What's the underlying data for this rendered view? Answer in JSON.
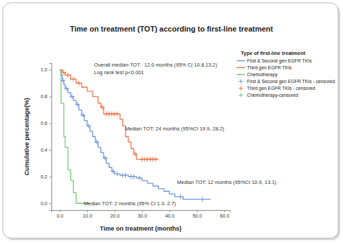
{
  "chart_data": {
    "type": "line",
    "title": "Time on treatment (TOT) according to first-line treatment",
    "x_label": "Time on treatment (months)",
    "y_label": "Cumulative percentage(%)",
    "legend_title": "Type of first-line treatment",
    "legend": "top-right",
    "annotations": [
      "Overall median TOT : 12.0 months (95% C| 10.8.13.2)",
      "Log rank test p<0.001",
      "Median TOT: 24 months (95%CI 19.9, 28.2)",
      "Median TOT: 12 months (95%CI 10.9, 13.1)",
      "Median TOT: 2 months (95% CI 1.3. 2.7)"
    ],
    "xlim": [
      -3,
      62
    ],
    "ylim": [
      -0.05,
      1.05
    ],
    "xticks": [
      {
        "value": 0,
        "label": "0.0"
      },
      {
        "value": 10,
        "label": "10.0"
      },
      {
        "value": 20,
        "label": "20.0"
      },
      {
        "value": 30,
        "label": "30.0"
      },
      {
        "value": 40,
        "label": "40.0"
      },
      {
        "value": 50,
        "label": "50.0"
      },
      {
        "value": 60,
        "label": "60.0"
      }
    ],
    "yticks": [
      {
        "value": 0,
        "label": "0.0"
      },
      0.2,
      0.4,
      0.6,
      0.8,
      {
        "value": 1,
        "label": "1.0"
      }
    ],
    "grid": false,
    "series": [
      {
        "name": "First & Second gen EGFR TKIs",
        "type": "step",
        "color": "#7196d8",
        "x": [
          0,
          0.5,
          1,
          1.5,
          2,
          3,
          4,
          5,
          6,
          7,
          8,
          9,
          10,
          11,
          12,
          13,
          14,
          15,
          16,
          17,
          18,
          19,
          20,
          22,
          25,
          28,
          30,
          32,
          34,
          36,
          38,
          40,
          42,
          45,
          55
        ],
        "values": [
          1.0,
          0.96,
          0.92,
          0.89,
          0.86,
          0.83,
          0.8,
          0.77,
          0.74,
          0.7,
          0.66,
          0.62,
          0.58,
          0.54,
          0.5,
          0.46,
          0.42,
          0.38,
          0.34,
          0.3,
          0.27,
          0.24,
          0.22,
          0.21,
          0.2,
          0.19,
          0.17,
          0.15,
          0.13,
          0.11,
          0.09,
          0.07,
          0.05,
          0.03,
          0.03
        ]
      },
      {
        "name": "Third gen EGFR TKIs",
        "type": "step",
        "color": "#ee7448",
        "x": [
          0,
          1,
          2,
          4,
          6,
          8,
          10,
          12,
          14,
          15,
          16,
          22,
          23,
          24,
          25,
          26,
          27,
          28,
          36
        ],
        "values": [
          1.0,
          0.98,
          0.96,
          0.93,
          0.9,
          0.87,
          0.84,
          0.8,
          0.75,
          0.72,
          0.67,
          0.63,
          0.58,
          0.5,
          0.46,
          0.41,
          0.37,
          0.33,
          0.33
        ]
      },
      {
        "name": "Chemotherapy",
        "type": "step",
        "color": "#74c776",
        "x": [
          0,
          0.5,
          1.5,
          2,
          3,
          4,
          5,
          6,
          11
        ],
        "values": [
          1.0,
          0.75,
          0.5,
          0.42,
          0.25,
          0.17,
          0.08,
          0,
          0
        ]
      },
      {
        "name": "First & Second gen EGFR TKIs - censored",
        "type": "scatter",
        "marker": "plus",
        "color": "#7196d8",
        "x": [
          1.2,
          2.5,
          4.5,
          6.5,
          8.5,
          10.5,
          13.5,
          16.5,
          19.5,
          21,
          23,
          24,
          26,
          27,
          29,
          44,
          52
        ],
        "values": [
          0.92,
          0.86,
          0.8,
          0.74,
          0.66,
          0.58,
          0.46,
          0.34,
          0.24,
          0.22,
          0.21,
          0.21,
          0.2,
          0.2,
          0.19,
          0.05,
          0.03
        ]
      },
      {
        "name": "Third gen EGFR TKIs - censored",
        "type": "scatter",
        "marker": "plus",
        "color": "#ee7448",
        "x": [
          1.5,
          3,
          5,
          7,
          15.5,
          17,
          18,
          19,
          20,
          21,
          27.5,
          30,
          31,
          32,
          33,
          34,
          35
        ],
        "values": [
          0.98,
          0.96,
          0.93,
          0.9,
          0.72,
          0.67,
          0.67,
          0.67,
          0.67,
          0.67,
          0.37,
          0.33,
          0.33,
          0.33,
          0.33,
          0.33,
          0.33
        ]
      },
      {
        "name": "Chemotherapy-censored",
        "type": "scatter",
        "marker": "plus",
        "color": "#74c776",
        "x": [],
        "values": []
      }
    ]
  }
}
